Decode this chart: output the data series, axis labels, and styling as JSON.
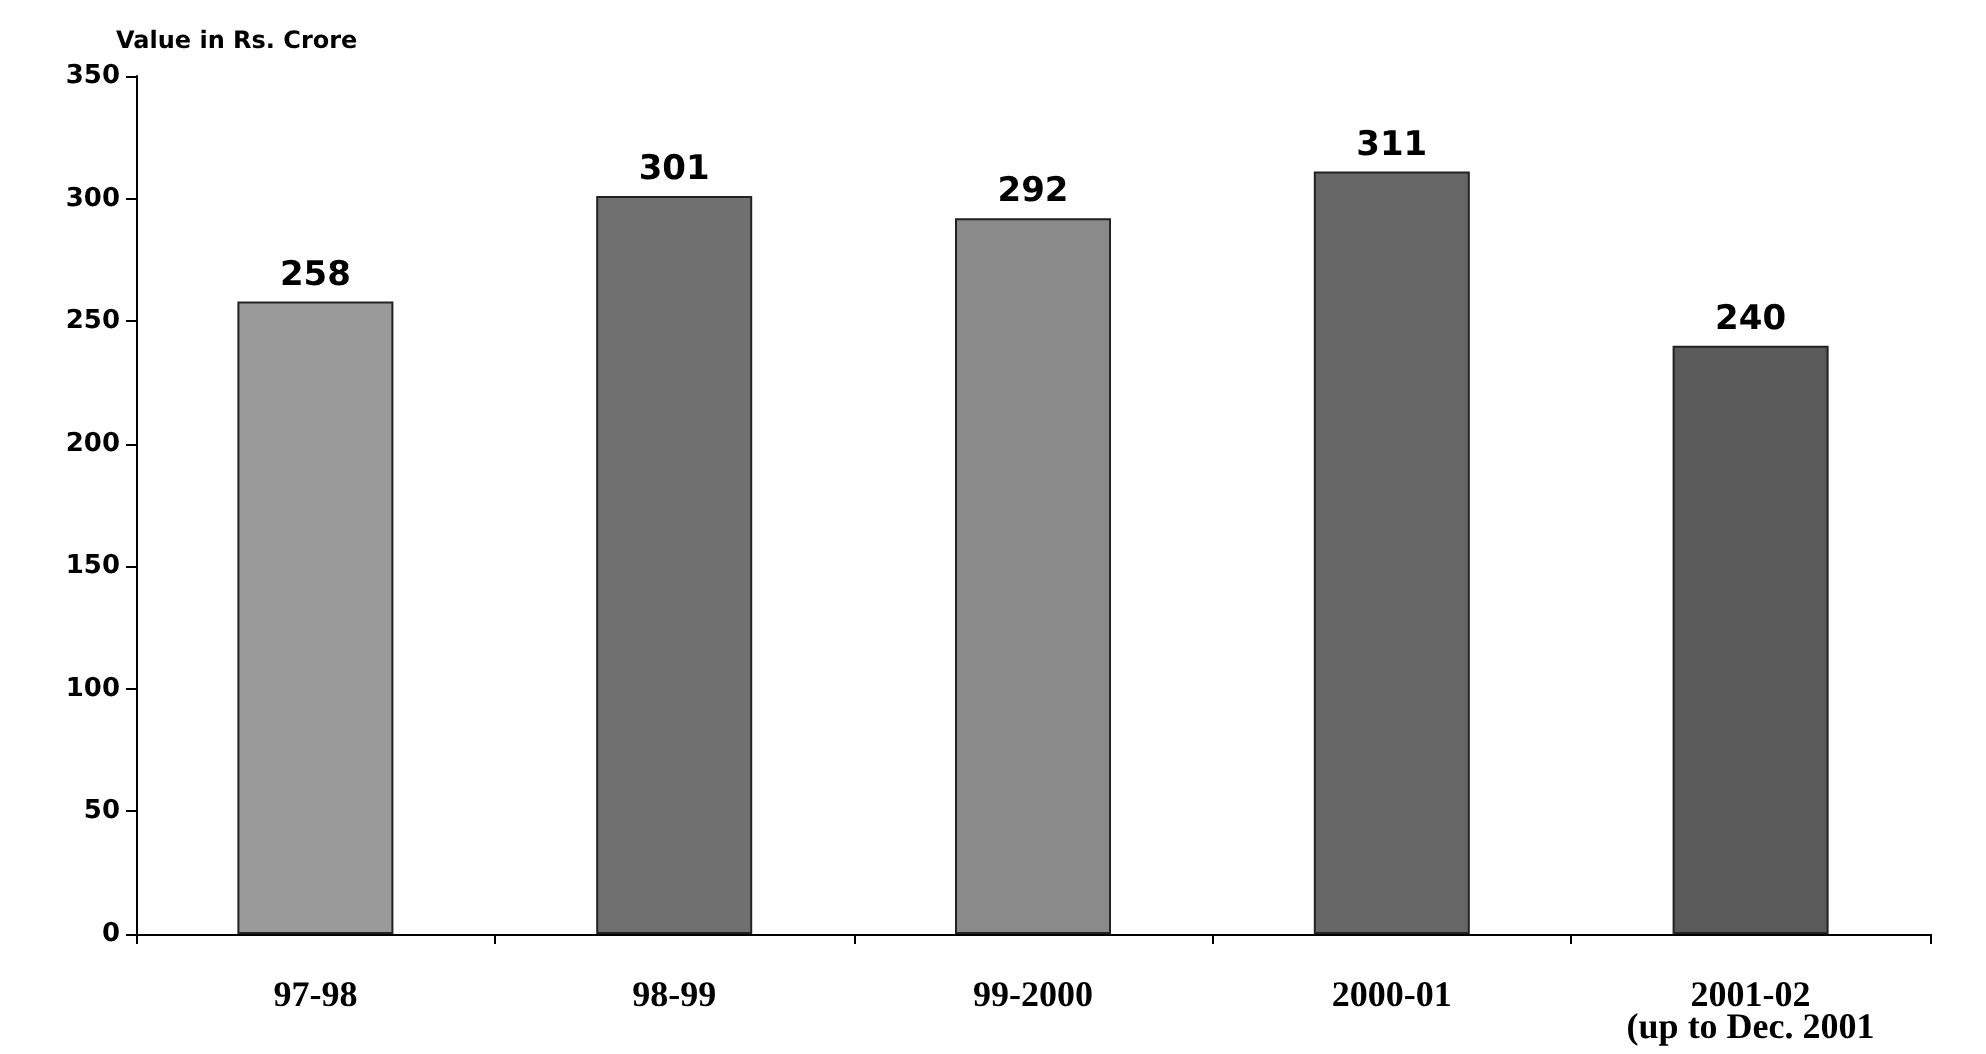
{
  "chart_data": {
    "type": "bar",
    "ylabel": "Value in Rs. Crore",
    "categories": [
      "97-98",
      "98-99",
      "99-2000",
      "2000-01",
      "2001-02\n(up to Dec. 2001"
    ],
    "values": [
      258,
      301,
      292,
      311,
      240
    ],
    "colors": [
      "#9a9a9a",
      "#707070",
      "#8a8a8a",
      "#666666",
      "#5a5a5a"
    ],
    "ylim": [
      0,
      350
    ],
    "yticks": [
      0,
      50,
      100,
      150,
      200,
      250,
      300,
      350
    ],
    "data_labels": true
  }
}
